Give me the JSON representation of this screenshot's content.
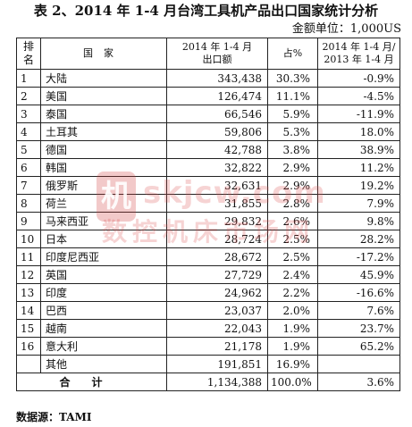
{
  "title": "表 2、2014 年 1-4 月台湾工具机产品出口国家统计分析",
  "unit": "金额单位：1,000US",
  "headers": {
    "rank_line1": "排",
    "rank_line2": "名",
    "country": "国家",
    "amount_line1": "2014 年 1-4 月",
    "amount_line2": "出口额",
    "share": "占%",
    "growth_line1": "2014 年 1-4 月/",
    "growth_line2": "2013 年 1-4 月"
  },
  "rows": [
    {
      "rank": "1",
      "country": "大陆",
      "amount": "343,438",
      "share": "30.3%",
      "growth": "-0.9%"
    },
    {
      "rank": "2",
      "country": "美国",
      "amount": "126,474",
      "share": "11.1%",
      "growth": "-4.5%"
    },
    {
      "rank": "3",
      "country": "泰国",
      "amount": "66,546",
      "share": "5.9%",
      "growth": "-11.9%"
    },
    {
      "rank": "4",
      "country": "土耳其",
      "amount": "59,806",
      "share": "5.3%",
      "growth": "18.0%"
    },
    {
      "rank": "5",
      "country": "德国",
      "amount": "42,788",
      "share": "3.8%",
      "growth": "38.9%"
    },
    {
      "rank": "6",
      "country": "韩国",
      "amount": "32,822",
      "share": "2.9%",
      "growth": "11.2%"
    },
    {
      "rank": "7",
      "country": "俄罗斯",
      "amount": "32,631",
      "share": "2.9%",
      "growth": "19.2%"
    },
    {
      "rank": "8",
      "country": "荷兰",
      "amount": "31,855",
      "share": "2.8%",
      "growth": "7.9%"
    },
    {
      "rank": "9",
      "country": "马来西亚",
      "amount": "29,832",
      "share": "2.6%",
      "growth": "9.8%"
    },
    {
      "rank": "10",
      "country": "日本",
      "amount": "28,724",
      "share": "2.5%",
      "growth": "28.2%"
    },
    {
      "rank": "11",
      "country": "印度尼西亚",
      "amount": "28,672",
      "share": "2.5%",
      "growth": "-17.2%"
    },
    {
      "rank": "12",
      "country": "英国",
      "amount": "27,729",
      "share": "2.4%",
      "growth": "45.9%"
    },
    {
      "rank": "13",
      "country": "印度",
      "amount": "24,962",
      "share": "2.2%",
      "growth": "-16.6%"
    },
    {
      "rank": "14",
      "country": "巴西",
      "amount": "23,037",
      "share": "2.0%",
      "growth": "7.6%"
    },
    {
      "rank": "15",
      "country": "越南",
      "amount": "22,043",
      "share": "1.9%",
      "growth": "23.7%"
    },
    {
      "rank": "16",
      "country": "意大利",
      "amount": "21,178",
      "share": "1.9%",
      "growth": "65.2%"
    },
    {
      "rank": "",
      "country": "其他",
      "amount": "191,851",
      "share": "16.9%",
      "growth": ""
    }
  ],
  "total": {
    "label": "合计",
    "amount": "1,134,388",
    "share": "100.0%",
    "growth": "3.6%"
  },
  "source": "数据源：TAMI",
  "watermark": {
    "seal": "机",
    "url": "skjcw.com",
    "text": "数控机床市场网"
  }
}
